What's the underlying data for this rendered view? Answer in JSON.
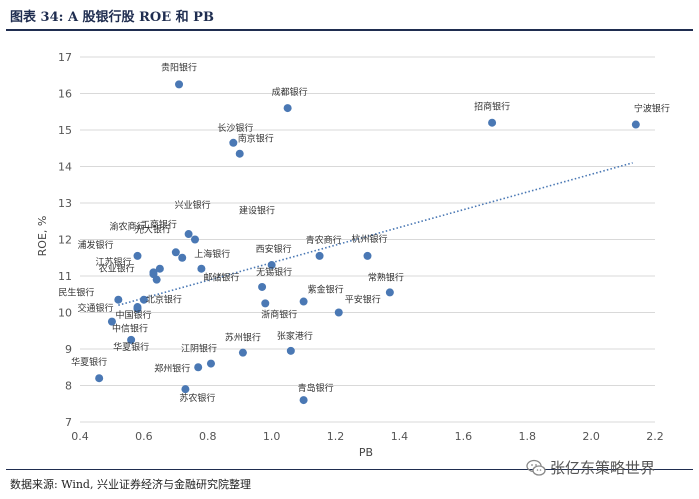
{
  "header": {
    "title": "图表 34: A 股银行股 ROE 和 PB"
  },
  "footer": {
    "source": "数据来源: Wind, 兴业证券经济与金融研究院整理"
  },
  "watermark": {
    "text": "张亿东策略世界",
    "icon": "wechat-icon"
  },
  "colors": {
    "point": "#4a78b4",
    "trend": "#4a78b4",
    "grid": "#d9d9d9",
    "rule": "#1f2d50"
  },
  "chart_data": {
    "type": "scatter",
    "xlabel": "PB",
    "ylabel": "ROE, %",
    "xlim": [
      0.4,
      2.2
    ],
    "ylim": [
      7,
      17
    ],
    "xticks": [
      "0.4",
      "0.6",
      "0.8",
      "1.0",
      "1.2",
      "1.4",
      "1.6",
      "1.8",
      "2.0",
      "2.2"
    ],
    "yticks": [
      "7",
      "8",
      "9",
      "10",
      "11",
      "12",
      "13",
      "14",
      "15",
      "16",
      "17"
    ],
    "grid": "horizontal",
    "trendline": {
      "style": "dotted",
      "x": [
        0.52,
        2.13
      ],
      "y": [
        10.2,
        14.1
      ]
    },
    "points": [
      {
        "name": "贵阳银行",
        "x": 0.71,
        "y": 16.25
      },
      {
        "name": "成都银行",
        "x": 1.05,
        "y": 15.6
      },
      {
        "name": "招商银行",
        "x": 1.69,
        "y": 15.2
      },
      {
        "name": "宁波银行",
        "x": 2.14,
        "y": 15.15
      },
      {
        "name": "长沙银行",
        "x": 0.88,
        "y": 14.65
      },
      {
        "name": "南京银行",
        "x": 0.9,
        "y": 14.35
      },
      {
        "name": "兴业银行",
        "x": 0.74,
        "y": 12.15
      },
      {
        "name": "建设银行",
        "x": 0.76,
        "y": 12.0
      },
      {
        "name": "渝农商行",
        "x": 0.63,
        "y": 11.1
      },
      {
        "name": "工商银行",
        "x": 0.7,
        "y": 11.65
      },
      {
        "name": "光大银行",
        "x": 0.65,
        "y": 11.2
      },
      {
        "name": "浦发银行",
        "x": 0.58,
        "y": 11.55
      },
      {
        "name": "上海银行",
        "x": 0.72,
        "y": 11.5
      },
      {
        "name": "江苏银行",
        "x": 0.63,
        "y": 11.05
      },
      {
        "name": "农业银行",
        "x": 0.64,
        "y": 10.9
      },
      {
        "name": "西安银行",
        "x": 1.0,
        "y": 11.3
      },
      {
        "name": "青农商行",
        "x": 1.15,
        "y": 11.55
      },
      {
        "name": "杭州银行",
        "x": 1.3,
        "y": 11.55
      },
      {
        "name": "常熟银行",
        "x": 1.37,
        "y": 10.55
      },
      {
        "name": "无锡银行",
        "x": 0.97,
        "y": 10.7
      },
      {
        "name": "邮储银行",
        "x": 0.78,
        "y": 11.2
      },
      {
        "name": "民生银行",
        "x": 0.52,
        "y": 10.35
      },
      {
        "name": "北京银行",
        "x": 0.6,
        "y": 10.35
      },
      {
        "name": "紫金银行",
        "x": 1.1,
        "y": 10.3
      },
      {
        "name": "平安银行",
        "x": 1.21,
        "y": 10.0
      },
      {
        "name": "交通银行",
        "x": 0.58,
        "y": 10.1
      },
      {
        "name": "中国银行",
        "x": 0.58,
        "y": 10.15
      },
      {
        "name": "浙商银行",
        "x": 0.98,
        "y": 10.25
      },
      {
        "name": "中信银行",
        "x": 0.5,
        "y": 9.75
      },
      {
        "name": "苏州银行",
        "x": 0.91,
        "y": 8.9
      },
      {
        "name": "张家港行",
        "x": 1.06,
        "y": 8.95
      },
      {
        "name": "江阴银行",
        "x": 0.81,
        "y": 8.6
      },
      {
        "name": "郑州银行",
        "x": 0.77,
        "y": 8.5
      },
      {
        "name": "华夏银行",
        "x": 0.56,
        "y": 9.25
      },
      {
        "name": "苏农银行",
        "x": 0.73,
        "y": 7.9
      },
      {
        "name": "青岛银行",
        "x": 1.1,
        "y": 7.6
      },
      {
        "name": "华夏银行",
        "x": 0.46,
        "y": 8.2
      }
    ]
  }
}
